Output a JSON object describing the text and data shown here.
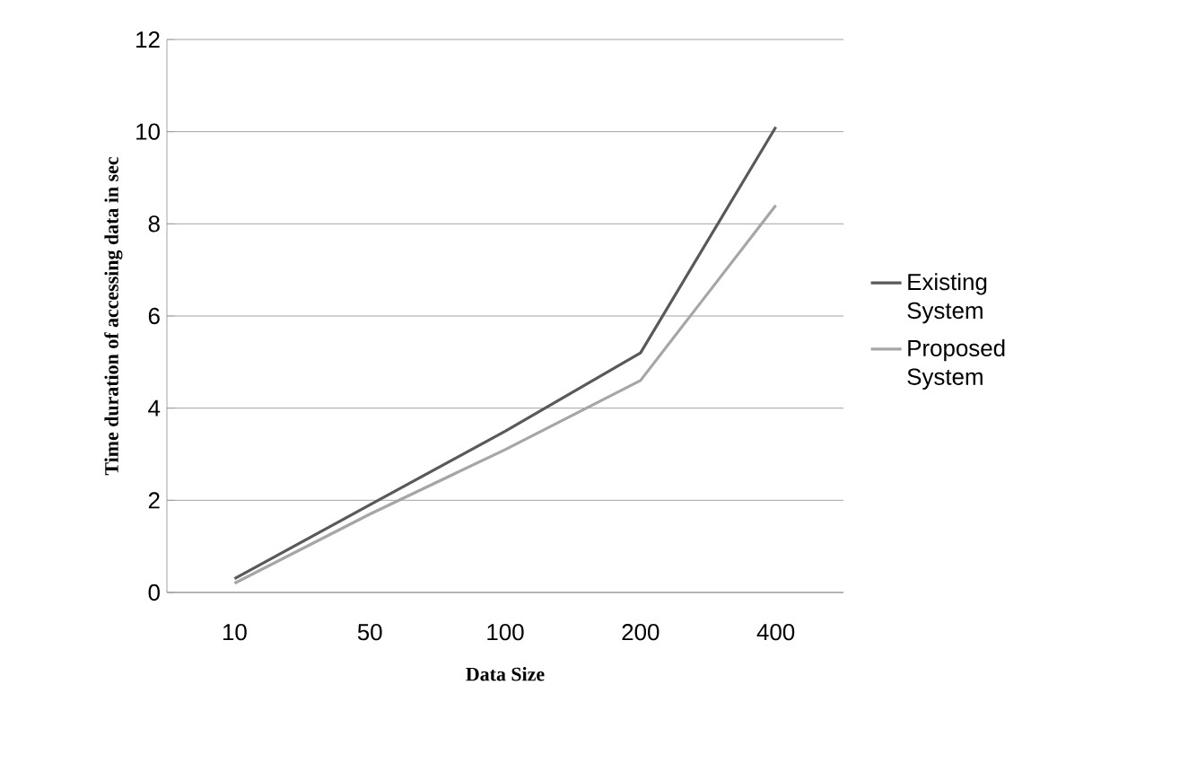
{
  "chart_data": {
    "type": "line",
    "xlabel": "Data Size",
    "ylabel": "Time duration of accessing data in sec",
    "categories": [
      "10",
      "50",
      "100",
      "200",
      "400"
    ],
    "series": [
      {
        "name": "Existing System",
        "color": "#595959",
        "values": [
          0.3,
          1.9,
          3.5,
          5.2,
          10.1
        ]
      },
      {
        "name": "Proposed System",
        "color": "#a6a6a6",
        "values": [
          0.2,
          1.7,
          3.1,
          4.6,
          8.4
        ]
      }
    ],
    "ylim": [
      0,
      12
    ],
    "yticks": [
      0,
      2,
      4,
      6,
      8,
      10,
      12
    ],
    "grid": "y",
    "legend": "right",
    "marker": "none",
    "line_style": "solid"
  }
}
